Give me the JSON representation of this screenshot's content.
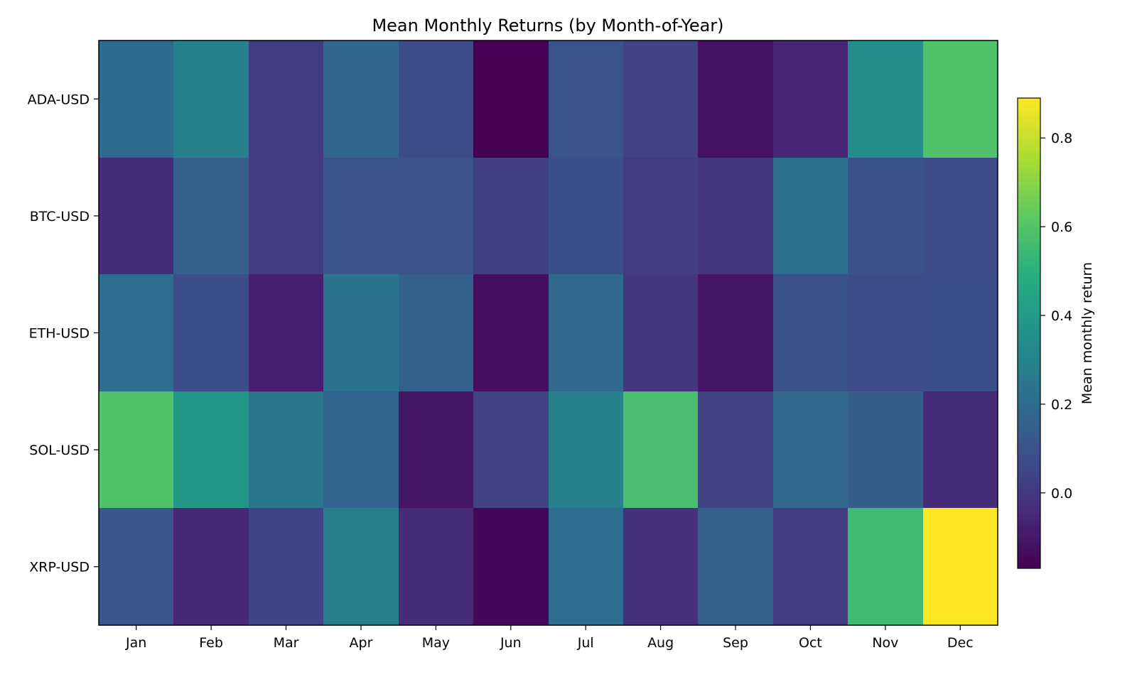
{
  "chart_data": {
    "type": "heatmap",
    "title": "Mean Monthly Returns (by Month-of-Year)",
    "xlabel": "",
    "ylabel": "",
    "colorbar_label": "Mean monthly return",
    "colormap": "viridis",
    "x_categories": [
      "Jan",
      "Feb",
      "Mar",
      "Apr",
      "May",
      "Jun",
      "Jul",
      "Aug",
      "Sep",
      "Oct",
      "Nov",
      "Dec"
    ],
    "y_categories": [
      "ADA-USD",
      "BTC-USD",
      "ETH-USD",
      "SOL-USD",
      "XRP-USD"
    ],
    "values": [
      [
        0.2,
        0.29,
        0.02,
        0.18,
        0.07,
        -0.17,
        0.1,
        0.04,
        -0.12,
        -0.06,
        0.34,
        0.59
      ],
      [
        -0.04,
        0.15,
        0.02,
        0.1,
        0.1,
        0.03,
        0.08,
        0.02,
        0.0,
        0.22,
        0.09,
        0.07
      ],
      [
        0.21,
        0.08,
        -0.08,
        0.23,
        0.15,
        -0.13,
        0.19,
        0.0,
        -0.11,
        0.09,
        0.07,
        0.08
      ],
      [
        0.59,
        0.39,
        0.25,
        0.17,
        -0.11,
        0.04,
        0.29,
        0.57,
        0.04,
        0.19,
        0.14,
        -0.04
      ],
      [
        0.12,
        -0.05,
        0.05,
        0.28,
        -0.04,
        -0.15,
        0.21,
        -0.03,
        0.15,
        0.02,
        0.55,
        0.89
      ]
    ],
    "colorbar_range": [
      -0.17,
      0.89
    ],
    "colorbar_ticks": [
      0.0,
      0.2,
      0.4,
      0.6,
      0.8
    ],
    "colorbar_tick_labels": [
      "0.0",
      "0.2",
      "0.4",
      "0.6",
      "0.8"
    ],
    "grid": false,
    "legend": "none"
  }
}
